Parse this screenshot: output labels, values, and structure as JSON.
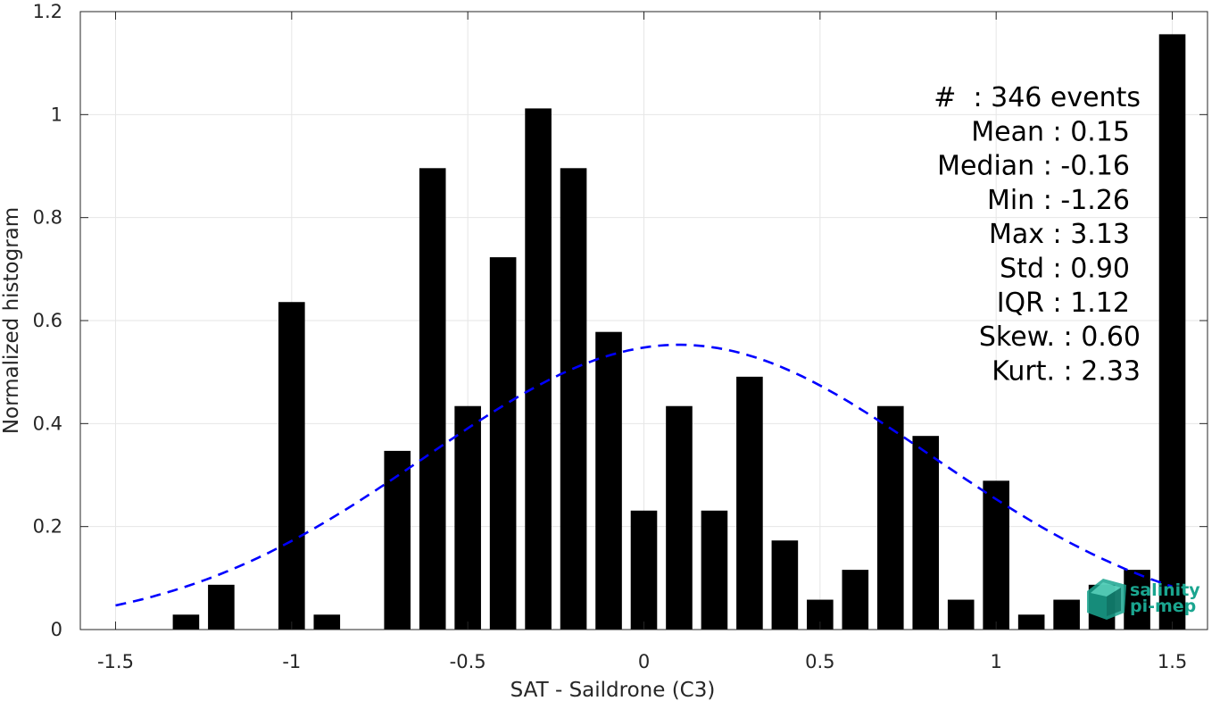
{
  "chart_data": {
    "type": "bar",
    "xlabel": "SAT - Saildrone (C3)",
    "ylabel": "Normalized histogram",
    "xlim": [
      -1.6,
      1.6
    ],
    "ylim": [
      0,
      1.2
    ],
    "xticks": [
      -1.5,
      -1,
      -0.5,
      0,
      0.5,
      1,
      1.5
    ],
    "xtick_labels": [
      "-1.5",
      "-1",
      "-0.5",
      "0",
      "0.5",
      "1",
      "1.5"
    ],
    "yticks": [
      0,
      0.2,
      0.4,
      0.6,
      0.8,
      1,
      1.2
    ],
    "ytick_labels": [
      "0",
      "0.2",
      "0.4",
      "0.6",
      "0.8",
      "1",
      "1.2"
    ],
    "grid": true,
    "bar_width": 0.075,
    "bar_color": "#000000",
    "bins": [
      {
        "x": -1.5,
        "y": 0
      },
      {
        "x": -1.4,
        "y": 0
      },
      {
        "x": -1.3,
        "y": 0.029
      },
      {
        "x": -1.2,
        "y": 0.087
      },
      {
        "x": -1.1,
        "y": 0
      },
      {
        "x": -1.0,
        "y": 0.636
      },
      {
        "x": -0.9,
        "y": 0.029
      },
      {
        "x": -0.8,
        "y": 0
      },
      {
        "x": -0.7,
        "y": 0.347
      },
      {
        "x": -0.6,
        "y": 0.896
      },
      {
        "x": -0.5,
        "y": 0.434
      },
      {
        "x": -0.4,
        "y": 0.723
      },
      {
        "x": -0.3,
        "y": 1.012
      },
      {
        "x": -0.2,
        "y": 0.896
      },
      {
        "x": -0.1,
        "y": 0.578
      },
      {
        "x": 0.0,
        "y": 0.231
      },
      {
        "x": 0.1,
        "y": 0.434
      },
      {
        "x": 0.2,
        "y": 0.231
      },
      {
        "x": 0.3,
        "y": 0.491
      },
      {
        "x": 0.4,
        "y": 0.173
      },
      {
        "x": 0.5,
        "y": 0.058
      },
      {
        "x": 0.6,
        "y": 0.116
      },
      {
        "x": 0.7,
        "y": 0.434
      },
      {
        "x": 0.8,
        "y": 0.376
      },
      {
        "x": 0.9,
        "y": 0.058
      },
      {
        "x": 1.0,
        "y": 0.289
      },
      {
        "x": 1.1,
        "y": 0.029
      },
      {
        "x": 1.2,
        "y": 0.058
      },
      {
        "x": 1.3,
        "y": 0.087
      },
      {
        "x": 1.4,
        "y": 0.116
      },
      {
        "x": 1.5,
        "y": 1.156
      }
    ],
    "fit_curve": {
      "style": "dashed",
      "color": "#0000ff",
      "mean": 0.1,
      "std": 0.72,
      "peak": 0.553,
      "x_range": [
        -1.5,
        1.5
      ]
    },
    "stats_lines": [
      "#  : 346 events",
      "Mean : 0.15",
      "Median : -0.16",
      "Min : -1.26",
      "Max : 3.13",
      "Std : 0.90",
      "IQR : 1.12",
      "Skew. : 0.60",
      "Kurt. : 2.33"
    ],
    "logo": {
      "line1": "salinity",
      "line2": "pi-mep",
      "color": "#1aa58f"
    }
  }
}
